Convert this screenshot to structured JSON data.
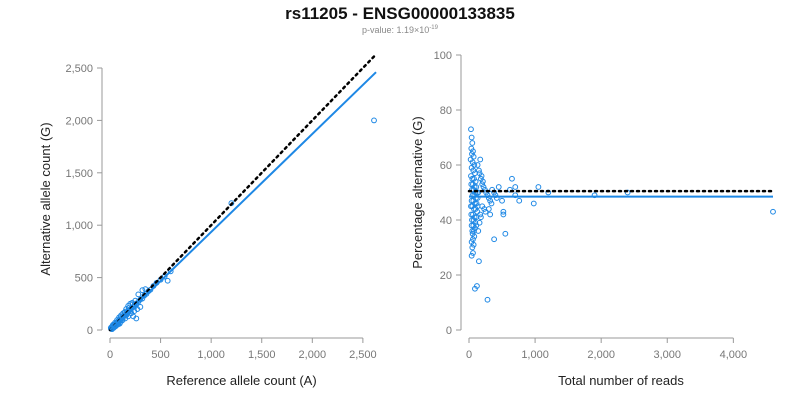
{
  "title": "rs11205 - ENSG00000133835",
  "subtitle": {
    "prefix": "p-value: 1.19×10",
    "exponent": "-19"
  },
  "colors": {
    "points": "#1e88e5",
    "fit_line": "#1e88e5",
    "reference_line": "#000000",
    "axes": "#999999",
    "tick_text": "#777777"
  },
  "chart_data": [
    {
      "type": "scatter",
      "xlabel": "Reference allele count (A)",
      "ylabel": "Alternative allele count (G)",
      "xlim": [
        0,
        2600
      ],
      "ylim": [
        0,
        2500
      ],
      "xticks": [
        0,
        500,
        1000,
        1500,
        2000,
        2500
      ],
      "xtick_labels": [
        "0",
        "500",
        "1,000",
        "1,500",
        "2,000",
        "2,500"
      ],
      "yticks": [
        0,
        500,
        1000,
        1500,
        2000,
        2500
      ],
      "ytick_labels": [
        "0",
        "500",
        "1,000",
        "1,500",
        "2,000",
        "2,500"
      ],
      "grid": false,
      "reference_line": {
        "style": "dotted",
        "x": [
          0,
          2630
        ],
        "y": [
          0,
          2630
        ]
      },
      "fit_line": {
        "style": "solid",
        "x": [
          0,
          2630
        ],
        "y": [
          0,
          2460
        ]
      },
      "points": [
        [
          10,
          12
        ],
        [
          14,
          15
        ],
        [
          18,
          20
        ],
        [
          22,
          18
        ],
        [
          25,
          30
        ],
        [
          30,
          26
        ],
        [
          35,
          40
        ],
        [
          40,
          36
        ],
        [
          45,
          50
        ],
        [
          50,
          44
        ],
        [
          55,
          60
        ],
        [
          60,
          58
        ],
        [
          65,
          70
        ],
        [
          70,
          62
        ],
        [
          75,
          80
        ],
        [
          80,
          78
        ],
        [
          85,
          75
        ],
        [
          90,
          95
        ],
        [
          95,
          90
        ],
        [
          100,
          100
        ],
        [
          110,
          105
        ],
        [
          120,
          115
        ],
        [
          130,
          125
        ],
        [
          140,
          135
        ],
        [
          150,
          140
        ],
        [
          160,
          155
        ],
        [
          170,
          160
        ],
        [
          180,
          175
        ],
        [
          190,
          185
        ],
        [
          200,
          195
        ],
        [
          215,
          210
        ],
        [
          230,
          220
        ],
        [
          245,
          240
        ],
        [
          260,
          250
        ],
        [
          280,
          270
        ],
        [
          300,
          290
        ],
        [
          320,
          300
        ],
        [
          340,
          330
        ],
        [
          360,
          345
        ],
        [
          380,
          370
        ],
        [
          400,
          385
        ],
        [
          430,
          420
        ],
        [
          460,
          450
        ],
        [
          500,
          480
        ],
        [
          540,
          510
        ],
        [
          20,
          8
        ],
        [
          40,
          25
        ],
        [
          60,
          45
        ],
        [
          80,
          55
        ],
        [
          100,
          70
        ],
        [
          120,
          90
        ],
        [
          150,
          110
        ],
        [
          180,
          130
        ],
        [
          210,
          160
        ],
        [
          240,
          180
        ],
        [
          270,
          200
        ],
        [
          300,
          220
        ],
        [
          160,
          200
        ],
        [
          180,
          230
        ],
        [
          200,
          250
        ],
        [
          220,
          260
        ],
        [
          250,
          280
        ],
        [
          280,
          340
        ],
        [
          320,
          380
        ],
        [
          350,
          390
        ],
        [
          30,
          50
        ],
        [
          50,
          70
        ],
        [
          70,
          95
        ],
        [
          90,
          120
        ],
        [
          110,
          140
        ],
        [
          130,
          160
        ],
        [
          150,
          175
        ],
        [
          230,
          130
        ],
        [
          260,
          110
        ],
        [
          12,
          25
        ],
        [
          25,
          40
        ],
        [
          8,
          20
        ],
        [
          16,
          10
        ],
        [
          35,
          20
        ],
        [
          55,
          35
        ],
        [
          75,
          50
        ],
        [
          95,
          60
        ],
        [
          600,
          560
        ],
        [
          570,
          470
        ],
        [
          1200,
          1210
        ],
        [
          2610,
          2000
        ],
        [
          105,
          125
        ],
        [
          125,
          100
        ],
        [
          145,
          165
        ],
        [
          165,
          145
        ],
        [
          185,
          210
        ],
        [
          205,
          180
        ],
        [
          225,
          245
        ],
        [
          245,
          225
        ]
      ]
    },
    {
      "type": "scatter",
      "xlabel": "Total number of reads",
      "ylabel": "Percentage alternative (G)",
      "xlim": [
        0,
        4600
      ],
      "ylim": [
        0,
        100
      ],
      "xticks": [
        0,
        1000,
        2000,
        3000,
        4000
      ],
      "xtick_labels": [
        "0",
        "1,000",
        "2,000",
        "3,000",
        "4,000"
      ],
      "yticks": [
        0,
        20,
        40,
        60,
        80,
        100
      ],
      "ytick_labels": [
        "0",
        "20",
        "40",
        "60",
        "80",
        "100"
      ],
      "grid": false,
      "reference_line": {
        "style": "dotted",
        "x": [
          0,
          4600
        ],
        "y": [
          50.5,
          50.5
        ]
      },
      "fit_line": {
        "style": "solid",
        "x": [
          0,
          4600
        ],
        "y": [
          48.5,
          48.5
        ]
      },
      "points": [
        [
          30,
          73
        ],
        [
          40,
          70
        ],
        [
          50,
          68
        ],
        [
          35,
          66
        ],
        [
          60,
          65
        ],
        [
          45,
          64
        ],
        [
          70,
          63
        ],
        [
          25,
          62
        ],
        [
          55,
          61
        ],
        [
          80,
          60
        ],
        [
          40,
          59
        ],
        [
          65,
          58
        ],
        [
          90,
          57
        ],
        [
          30,
          56
        ],
        [
          50,
          55
        ],
        [
          75,
          55
        ],
        [
          100,
          54
        ],
        [
          35,
          53
        ],
        [
          60,
          53
        ],
        [
          85,
          52
        ],
        [
          110,
          52
        ],
        [
          45,
          51
        ],
        [
          70,
          51
        ],
        [
          95,
          50
        ],
        [
          120,
          50
        ],
        [
          140,
          50
        ],
        [
          55,
          49
        ],
        [
          80,
          49
        ],
        [
          105,
          48
        ],
        [
          130,
          48
        ],
        [
          40,
          47
        ],
        [
          65,
          47
        ],
        [
          90,
          46
        ],
        [
          115,
          46
        ],
        [
          30,
          45
        ],
        [
          50,
          45
        ],
        [
          75,
          44
        ],
        [
          100,
          44
        ],
        [
          125,
          43
        ],
        [
          35,
          42
        ],
        [
          60,
          42
        ],
        [
          85,
          41
        ],
        [
          110,
          41
        ],
        [
          45,
          40
        ],
        [
          70,
          40
        ],
        [
          95,
          39
        ],
        [
          40,
          38
        ],
        [
          65,
          38
        ],
        [
          90,
          37
        ],
        [
          50,
          36
        ],
        [
          75,
          36
        ],
        [
          55,
          35
        ],
        [
          80,
          34
        ],
        [
          60,
          33
        ],
        [
          40,
          32
        ],
        [
          70,
          31
        ],
        [
          50,
          30
        ],
        [
          60,
          28
        ],
        [
          40,
          27
        ],
        [
          90,
          15
        ],
        [
          120,
          16
        ],
        [
          280,
          11
        ],
        [
          150,
          25
        ],
        [
          160,
          57
        ],
        [
          180,
          55
        ],
        [
          200,
          53
        ],
        [
          220,
          52
        ],
        [
          240,
          51
        ],
        [
          260,
          50
        ],
        [
          280,
          49
        ],
        [
          300,
          48
        ],
        [
          320,
          47
        ],
        [
          340,
          46
        ],
        [
          200,
          45
        ],
        [
          230,
          44
        ],
        [
          250,
          43
        ],
        [
          170,
          42
        ],
        [
          190,
          56
        ],
        [
          210,
          54
        ],
        [
          350,
          51
        ],
        [
          380,
          50
        ],
        [
          400,
          49
        ],
        [
          420,
          48
        ],
        [
          450,
          52
        ],
        [
          300,
          44
        ],
        [
          320,
          42
        ],
        [
          380,
          33
        ],
        [
          520,
          42
        ],
        [
          520,
          43
        ],
        [
          550,
          35
        ],
        [
          500,
          47
        ],
        [
          620,
          51
        ],
        [
          650,
          55
        ],
        [
          700,
          52
        ],
        [
          700,
          49
        ],
        [
          760,
          47
        ],
        [
          980,
          46
        ],
        [
          1050,
          52
        ],
        [
          1200,
          50
        ],
        [
          1900,
          49
        ],
        [
          2400,
          50
        ],
        [
          4600,
          43
        ],
        [
          130,
          60
        ],
        [
          150,
          58
        ],
        [
          170,
          62
        ],
        [
          110,
          38
        ],
        [
          140,
          36
        ],
        [
          160,
          39
        ],
        [
          180,
          41
        ],
        [
          130,
          45
        ]
      ]
    }
  ]
}
